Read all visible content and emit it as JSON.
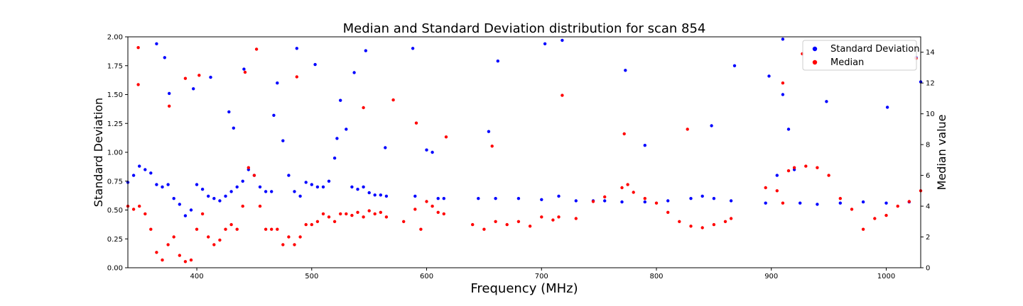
{
  "chart_data": {
    "type": "scatter",
    "title": "Median and Standard Deviation distribution for scan 854",
    "xlabel": "Frequency (MHz)",
    "ylabel_left": "Standard Deviation",
    "ylabel_right": "Median value",
    "xlim": [
      340,
      1030
    ],
    "ylim_left": [
      0,
      2.0
    ],
    "ylim_right": [
      0,
      15
    ],
    "x_ticks": [
      400,
      500,
      600,
      700,
      800,
      900,
      1000
    ],
    "y_left_ticks": [
      "0.00",
      "0.25",
      "0.50",
      "0.75",
      "1.00",
      "1.25",
      "1.50",
      "1.75",
      "2.00"
    ],
    "y_right_ticks": [
      0,
      2,
      4,
      6,
      8,
      10,
      12,
      14
    ],
    "grid": false,
    "legend_position": "top-right",
    "series": [
      {
        "name": "Standard Deviation",
        "axis": "left",
        "color": "#0000ff",
        "points": [
          [
            340,
            0.74
          ],
          [
            345,
            0.8
          ],
          [
            350,
            0.88
          ],
          [
            355,
            0.85
          ],
          [
            360,
            0.82
          ],
          [
            365,
            0.72
          ],
          [
            370,
            0.7
          ],
          [
            375,
            0.72
          ],
          [
            380,
            0.6
          ],
          [
            385,
            0.55
          ],
          [
            390,
            0.45
          ],
          [
            395,
            0.5
          ],
          [
            400,
            0.72
          ],
          [
            405,
            0.68
          ],
          [
            410,
            0.62
          ],
          [
            415,
            0.6
          ],
          [
            420,
            0.58
          ],
          [
            425,
            0.62
          ],
          [
            430,
            0.66
          ],
          [
            435,
            0.7
          ],
          [
            440,
            0.75
          ],
          [
            445,
            0.85
          ],
          [
            450,
            0.8
          ],
          [
            455,
            0.7
          ],
          [
            460,
            0.66
          ],
          [
            465,
            0.66
          ],
          [
            470,
            1.6
          ],
          [
            475,
            1.1
          ],
          [
            480,
            0.8
          ],
          [
            485,
            0.66
          ],
          [
            490,
            0.62
          ],
          [
            495,
            0.74
          ],
          [
            500,
            0.72
          ],
          [
            505,
            0.7
          ],
          [
            510,
            0.7
          ],
          [
            515,
            0.75
          ],
          [
            520,
            0.95
          ],
          [
            525,
            1.45
          ],
          [
            530,
            1.2
          ],
          [
            535,
            0.7
          ],
          [
            540,
            0.68
          ],
          [
            545,
            0.7
          ],
          [
            550,
            0.65
          ],
          [
            555,
            0.63
          ],
          [
            560,
            0.63
          ],
          [
            565,
            0.62
          ],
          [
            590,
            0.62
          ],
          [
            600,
            1.02
          ],
          [
            605,
            1.0
          ],
          [
            610,
            0.6
          ],
          [
            615,
            0.6
          ],
          [
            645,
            0.6
          ],
          [
            660,
            0.6
          ],
          [
            680,
            0.6
          ],
          [
            700,
            0.59
          ],
          [
            715,
            0.62
          ],
          [
            730,
            0.58
          ],
          [
            745,
            0.58
          ],
          [
            755,
            0.58
          ],
          [
            770,
            0.57
          ],
          [
            790,
            0.57
          ],
          [
            810,
            0.58
          ],
          [
            830,
            0.6
          ],
          [
            840,
            0.62
          ],
          [
            850,
            0.6
          ],
          [
            865,
            0.58
          ],
          [
            895,
            0.56
          ],
          [
            905,
            0.8
          ],
          [
            910,
            1.5
          ],
          [
            915,
            1.2
          ],
          [
            920,
            0.85
          ],
          [
            925,
            0.56
          ],
          [
            940,
            0.55
          ],
          [
            960,
            0.56
          ],
          [
            980,
            0.57
          ],
          [
            1000,
            0.56
          ],
          [
            1020,
            0.57
          ],
          [
            365,
            1.94
          ],
          [
            372,
            1.82
          ],
          [
            376,
            1.51
          ],
          [
            397,
            1.55
          ],
          [
            412,
            1.65
          ],
          [
            428,
            1.35
          ],
          [
            441,
            1.72
          ],
          [
            487,
            1.9
          ],
          [
            503,
            1.76
          ],
          [
            537,
            1.69
          ],
          [
            547,
            1.88
          ],
          [
            588,
            1.9
          ],
          [
            662,
            1.79
          ],
          [
            703,
            1.94
          ],
          [
            718,
            1.97
          ],
          [
            773,
            1.71
          ],
          [
            868,
            1.75
          ],
          [
            898,
            1.66
          ],
          [
            910,
            1.98
          ],
          [
            948,
            1.44
          ],
          [
            1001,
            1.39
          ],
          [
            1026,
            1.82
          ],
          [
            1030,
            1.61
          ],
          [
            432,
            1.21
          ],
          [
            467,
            1.32
          ],
          [
            522,
            1.12
          ],
          [
            564,
            1.04
          ],
          [
            654,
            1.18
          ],
          [
            790,
            1.06
          ],
          [
            848,
            1.23
          ]
        ]
      },
      {
        "name": "Median",
        "axis": "right",
        "color": "#ff0000",
        "points": [
          [
            340,
            4.0
          ],
          [
            345,
            3.8
          ],
          [
            350,
            4.0
          ],
          [
            355,
            3.5
          ],
          [
            360,
            2.5
          ],
          [
            365,
            1.0
          ],
          [
            370,
            0.5
          ],
          [
            375,
            1.5
          ],
          [
            380,
            2.0
          ],
          [
            385,
            0.8
          ],
          [
            390,
            0.4
          ],
          [
            395,
            0.5
          ],
          [
            400,
            2.5
          ],
          [
            405,
            3.5
          ],
          [
            410,
            2.0
          ],
          [
            415,
            1.5
          ],
          [
            420,
            1.8
          ],
          [
            425,
            2.5
          ],
          [
            430,
            2.8
          ],
          [
            435,
            2.5
          ],
          [
            440,
            4.0
          ],
          [
            445,
            6.5
          ],
          [
            450,
            6.0
          ],
          [
            455,
            4.0
          ],
          [
            460,
            2.5
          ],
          [
            465,
            2.5
          ],
          [
            470,
            2.5
          ],
          [
            475,
            1.5
          ],
          [
            480,
            2.0
          ],
          [
            485,
            1.5
          ],
          [
            490,
            2.0
          ],
          [
            495,
            2.8
          ],
          [
            500,
            2.8
          ],
          [
            505,
            3.0
          ],
          [
            510,
            3.5
          ],
          [
            515,
            3.3
          ],
          [
            520,
            3.0
          ],
          [
            525,
            3.5
          ],
          [
            530,
            3.5
          ],
          [
            535,
            3.4
          ],
          [
            540,
            3.6
          ],
          [
            545,
            3.3
          ],
          [
            550,
            3.7
          ],
          [
            555,
            3.5
          ],
          [
            560,
            3.6
          ],
          [
            565,
            3.3
          ],
          [
            580,
            3.0
          ],
          [
            590,
            3.8
          ],
          [
            595,
            2.5
          ],
          [
            600,
            4.3
          ],
          [
            605,
            4.0
          ],
          [
            610,
            3.6
          ],
          [
            615,
            3.5
          ],
          [
            640,
            2.8
          ],
          [
            650,
            2.5
          ],
          [
            660,
            3.0
          ],
          [
            670,
            2.8
          ],
          [
            680,
            3.0
          ],
          [
            690,
            2.7
          ],
          [
            700,
            3.3
          ],
          [
            710,
            3.1
          ],
          [
            715,
            3.3
          ],
          [
            730,
            3.2
          ],
          [
            745,
            4.3
          ],
          [
            755,
            4.6
          ],
          [
            770,
            5.2
          ],
          [
            775,
            5.4
          ],
          [
            780,
            4.9
          ],
          [
            790,
            4.5
          ],
          [
            800,
            4.2
          ],
          [
            810,
            3.6
          ],
          [
            820,
            3.0
          ],
          [
            830,
            2.7
          ],
          [
            840,
            2.6
          ],
          [
            850,
            2.8
          ],
          [
            860,
            3.0
          ],
          [
            865,
            3.2
          ],
          [
            895,
            5.2
          ],
          [
            905,
            5.0
          ],
          [
            910,
            4.2
          ],
          [
            915,
            6.3
          ],
          [
            920,
            6.5
          ],
          [
            930,
            6.6
          ],
          [
            940,
            6.5
          ],
          [
            950,
            6.0
          ],
          [
            960,
            4.5
          ],
          [
            970,
            3.8
          ],
          [
            980,
            2.5
          ],
          [
            990,
            3.2
          ],
          [
            1000,
            3.4
          ],
          [
            1010,
            4.0
          ],
          [
            1020,
            4.3
          ],
          [
            1030,
            5.0
          ],
          [
            349,
            14.3
          ],
          [
            349,
            11.9
          ],
          [
            376,
            10.5
          ],
          [
            390,
            12.3
          ],
          [
            402,
            12.5
          ],
          [
            442,
            12.7
          ],
          [
            452,
            14.2
          ],
          [
            487,
            12.4
          ],
          [
            545,
            10.4
          ],
          [
            571,
            10.9
          ],
          [
            591,
            9.4
          ],
          [
            617,
            8.5
          ],
          [
            657,
            7.9
          ],
          [
            718,
            11.2
          ],
          [
            772,
            8.7
          ],
          [
            827,
            9.0
          ],
          [
            910,
            12.0
          ],
          [
            927,
            13.9
          ],
          [
            1026,
            13.6
          ]
        ]
      }
    ]
  }
}
